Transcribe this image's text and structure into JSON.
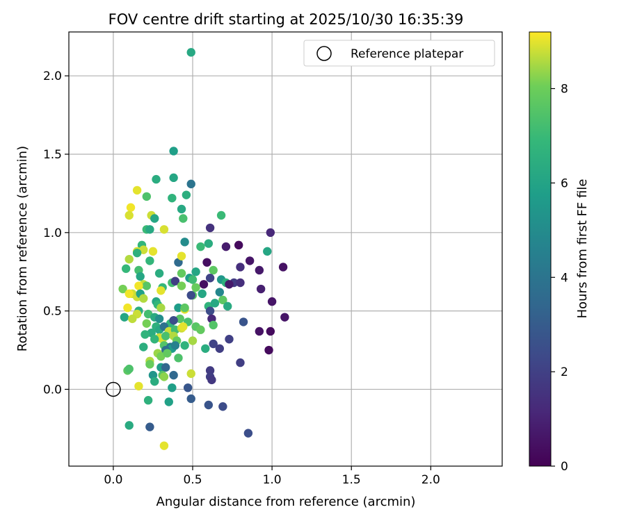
{
  "chart_data": {
    "type": "scatter",
    "title": "FOV centre drift starting at 2025/10/30 16:35:39",
    "xlabel": "Angular distance from reference (arcmin)",
    "ylabel": "Rotation from reference (arcmin)",
    "xlim": [
      -0.28,
      2.45
    ],
    "ylim": [
      -0.49,
      2.28
    ],
    "xticks": [
      "0.0",
      "0.5",
      "1.0",
      "1.5",
      "2.0"
    ],
    "yticks": [
      "0.0",
      "0.5",
      "1.0",
      "1.5",
      "2.0"
    ],
    "grid": true,
    "legend": {
      "position": "top-right",
      "label": "Reference platepar"
    },
    "reference": {
      "x": 0.0,
      "y": 0.0
    },
    "colorbar": {
      "label": "Hours from first FF file",
      "min": 0,
      "max": 9.2,
      "ticks": [
        "0",
        "2",
        "4",
        "6",
        "8"
      ],
      "colormap": "viridis"
    },
    "points": [
      [
        0.49,
        2.15,
        6.2
      ],
      [
        0.38,
        1.52,
        5.8
      ],
      [
        0.38,
        1.35,
        6.1
      ],
      [
        0.27,
        1.34,
        6.4
      ],
      [
        0.49,
        1.31,
        4.0
      ],
      [
        0.46,
        1.24,
        6.5
      ],
      [
        0.37,
        1.22,
        6.7
      ],
      [
        0.15,
        1.27,
        9.0
      ],
      [
        0.21,
        1.23,
        7.4
      ],
      [
        0.11,
        1.16,
        9.1
      ],
      [
        0.1,
        1.11,
        8.9
      ],
      [
        0.24,
        1.11,
        8.8
      ],
      [
        0.26,
        1.09,
        6.1
      ],
      [
        0.43,
        1.15,
        6.2
      ],
      [
        0.44,
        1.09,
        7.3
      ],
      [
        0.68,
        1.11,
        7.0
      ],
      [
        0.61,
        1.03,
        1.5
      ],
      [
        0.99,
        1.0,
        1.2
      ],
      [
        0.21,
        1.02,
        7.0
      ],
      [
        0.23,
        1.02,
        6.2
      ],
      [
        0.32,
        1.02,
        8.9
      ],
      [
        0.45,
        0.94,
        5.0
      ],
      [
        0.6,
        0.93,
        6.4
      ],
      [
        0.55,
        0.91,
        7.0
      ],
      [
        0.71,
        0.91,
        0.8
      ],
      [
        0.79,
        0.92,
        0.3
      ],
      [
        0.97,
        0.88,
        6.1
      ],
      [
        0.18,
        0.92,
        6.8
      ],
      [
        0.15,
        0.88,
        8.9
      ],
      [
        0.25,
        0.88,
        9.0
      ],
      [
        0.19,
        0.89,
        8.8
      ],
      [
        0.15,
        0.87,
        6.6
      ],
      [
        0.1,
        0.83,
        8.6
      ],
      [
        0.41,
        0.81,
        3.6
      ],
      [
        0.43,
        0.85,
        9.0
      ],
      [
        0.59,
        0.81,
        0.4
      ],
      [
        0.86,
        0.82,
        0.6
      ],
      [
        0.8,
        0.78,
        1.4
      ],
      [
        0.92,
        0.76,
        0.7
      ],
      [
        1.07,
        0.78,
        0.5
      ],
      [
        0.23,
        0.82,
        6.8
      ],
      [
        0.08,
        0.77,
        6.9
      ],
      [
        0.16,
        0.76,
        7.2
      ],
      [
        0.52,
        0.75,
        6.1
      ],
      [
        0.63,
        0.76,
        7.7
      ],
      [
        0.29,
        0.74,
        6.4
      ],
      [
        0.43,
        0.74,
        7.8
      ],
      [
        0.17,
        0.72,
        6.1
      ],
      [
        0.48,
        0.71,
        5.7
      ],
      [
        0.5,
        0.7,
        7.1
      ],
      [
        0.61,
        0.71,
        2.1
      ],
      [
        0.68,
        0.7,
        5.5
      ],
      [
        0.71,
        0.68,
        6.6
      ],
      [
        0.76,
        0.68,
        1.8
      ],
      [
        0.8,
        0.68,
        1.4
      ],
      [
        0.57,
        0.67,
        0.4
      ],
      [
        0.73,
        0.67,
        0.7
      ],
      [
        0.19,
        0.67,
        8.7
      ],
      [
        0.21,
        0.66,
        7.6
      ],
      [
        0.37,
        0.68,
        7.2
      ],
      [
        0.39,
        0.69,
        1.9
      ],
      [
        0.43,
        0.66,
        8.1
      ],
      [
        0.31,
        0.65,
        6.9
      ],
      [
        0.16,
        0.66,
        9.1
      ],
      [
        0.52,
        0.65,
        7.9
      ],
      [
        0.06,
        0.64,
        8.1
      ],
      [
        0.3,
        0.63,
        9.0
      ],
      [
        0.12,
        0.61,
        8.8
      ],
      [
        0.1,
        0.61,
        9.1
      ],
      [
        0.15,
        0.59,
        8.8
      ],
      [
        0.17,
        0.61,
        5.9
      ],
      [
        0.56,
        0.61,
        6.1
      ],
      [
        0.5,
        0.6,
        7.6
      ],
      [
        0.49,
        0.6,
        2.4
      ],
      [
        0.67,
        0.62,
        4.8
      ],
      [
        0.93,
        0.64,
        0.9
      ],
      [
        0.19,
        0.58,
        8.6
      ],
      [
        0.27,
        0.56,
        6.1
      ],
      [
        0.28,
        0.54,
        6.8
      ],
      [
        0.3,
        0.52,
        8.5
      ],
      [
        0.41,
        0.52,
        5.7
      ],
      [
        0.45,
        0.51,
        9.0
      ],
      [
        0.45,
        0.52,
        7.7
      ],
      [
        0.6,
        0.53,
        6.7
      ],
      [
        0.64,
        0.55,
        6.2
      ],
      [
        0.69,
        0.57,
        7.7
      ],
      [
        0.72,
        0.53,
        6.3
      ],
      [
        1.0,
        0.56,
        0.6
      ],
      [
        0.09,
        0.52,
        9.1
      ],
      [
        0.16,
        0.5,
        6.5
      ],
      [
        0.15,
        0.48,
        8.8
      ],
      [
        0.07,
        0.46,
        6.1
      ],
      [
        0.12,
        0.45,
        8.7
      ],
      [
        0.22,
        0.48,
        7.2
      ],
      [
        0.26,
        0.46,
        6.3
      ],
      [
        0.29,
        0.45,
        5.1
      ],
      [
        0.36,
        0.42,
        6.8
      ],
      [
        0.42,
        0.45,
        7.6
      ],
      [
        0.38,
        0.44,
        2.5
      ],
      [
        0.47,
        0.43,
        7.3
      ],
      [
        0.52,
        0.4,
        7.6
      ],
      [
        0.55,
        0.38,
        7.8
      ],
      [
        0.61,
        0.5,
        2.4
      ],
      [
        0.62,
        0.45,
        1.2
      ],
      [
        0.63,
        0.41,
        7.5
      ],
      [
        0.82,
        0.43,
        2.7
      ],
      [
        1.08,
        0.46,
        0.6
      ],
      [
        0.21,
        0.42,
        8.1
      ],
      [
        0.27,
        0.4,
        6.6
      ],
      [
        0.29,
        0.38,
        6.2
      ],
      [
        0.32,
        0.4,
        3.9
      ],
      [
        0.35,
        0.37,
        8.8
      ],
      [
        0.39,
        0.38,
        7.2
      ],
      [
        0.43,
        0.39,
        8.8
      ],
      [
        0.44,
        0.4,
        9.0
      ],
      [
        0.24,
        0.36,
        6.4
      ],
      [
        0.2,
        0.35,
        6.7
      ],
      [
        0.29,
        0.33,
        8.8
      ],
      [
        0.31,
        0.32,
        8.9
      ],
      [
        0.33,
        0.34,
        7.3
      ],
      [
        0.38,
        0.34,
        8.6
      ],
      [
        0.4,
        0.31,
        7.8
      ],
      [
        0.45,
        0.28,
        6.7
      ],
      [
        0.5,
        0.31,
        8.5
      ],
      [
        0.58,
        0.26,
        6.4
      ],
      [
        0.63,
        0.29,
        2.1
      ],
      [
        0.67,
        0.26,
        1.9
      ],
      [
        0.73,
        0.32,
        2.0
      ],
      [
        0.92,
        0.37,
        0.5
      ],
      [
        0.99,
        0.37,
        0.3
      ],
      [
        0.26,
        0.32,
        6.8
      ],
      [
        0.19,
        0.27,
        6.5
      ],
      [
        0.32,
        0.28,
        7.5
      ],
      [
        0.36,
        0.27,
        4.0
      ],
      [
        0.37,
        0.26,
        5.7
      ],
      [
        0.39,
        0.28,
        4.5
      ],
      [
        0.33,
        0.25,
        3.8
      ],
      [
        0.28,
        0.23,
        8.4
      ],
      [
        0.3,
        0.21,
        8.1
      ],
      [
        0.34,
        0.23,
        7.8
      ],
      [
        0.41,
        0.2,
        7.4
      ],
      [
        0.98,
        0.25,
        0.3
      ],
      [
        0.23,
        0.18,
        8.6
      ],
      [
        0.23,
        0.16,
        7.9
      ],
      [
        0.3,
        0.14,
        5.7
      ],
      [
        0.33,
        0.14,
        3.4
      ],
      [
        0.8,
        0.17,
        1.9
      ],
      [
        0.09,
        0.12,
        7.7
      ],
      [
        0.1,
        0.13,
        7.4
      ],
      [
        0.25,
        0.09,
        5.4
      ],
      [
        0.31,
        0.09,
        7.6
      ],
      [
        0.32,
        0.08,
        8.3
      ],
      [
        0.38,
        0.09,
        3.5
      ],
      [
        0.49,
        0.1,
        8.8
      ],
      [
        0.61,
        0.12,
        1.8
      ],
      [
        0.61,
        0.08,
        1.9
      ],
      [
        0.62,
        0.06,
        1.7
      ],
      [
        0.26,
        0.05,
        6.4
      ],
      [
        0.37,
        0.01,
        5.8
      ],
      [
        0.16,
        0.02,
        9.0
      ],
      [
        0.47,
        0.01,
        2.8
      ],
      [
        0.22,
        -0.07,
        6.6
      ],
      [
        0.35,
        -0.08,
        5.9
      ],
      [
        0.49,
        -0.06,
        3.0
      ],
      [
        0.6,
        -0.1,
        2.7
      ],
      [
        0.69,
        -0.11,
        2.4
      ],
      [
        0.1,
        -0.23,
        6.3
      ],
      [
        0.23,
        -0.24,
        3.0
      ],
      [
        0.85,
        -0.28,
        2.5
      ],
      [
        0.32,
        -0.36,
        9.0
      ]
    ]
  }
}
